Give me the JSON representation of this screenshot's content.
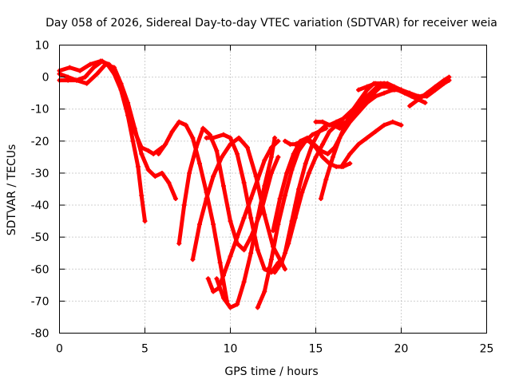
{
  "chart_data": {
    "type": "line",
    "title": "Day 058 of 2026, Sidereal Day-to-day VTEC variation (SDTVAR) for receiver weia",
    "xlabel": "GPS time / hours",
    "ylabel": "SDTVAR / TECUs",
    "xlim": [
      0,
      25
    ],
    "ylim": [
      -80,
      10
    ],
    "xticks": [
      "0",
      "5",
      "10",
      "15",
      "20",
      "25"
    ],
    "yticks": [
      "10",
      "0",
      "-10",
      "-20",
      "-30",
      "-40",
      "-50",
      "-60",
      "-70",
      "-80"
    ],
    "grid": true,
    "color": "#ff0000",
    "marker": "+",
    "series": [
      {
        "name": "s1",
        "x": [
          0.0,
          0.5,
          1.0,
          1.5,
          2.0,
          2.5,
          2.8,
          3.2,
          3.6,
          4.0,
          4.3,
          4.6,
          4.8,
          5.0
        ],
        "y": [
          1,
          0,
          -1,
          0,
          3,
          5,
          4,
          1,
          -4,
          -12,
          -20,
          -28,
          -37,
          -45
        ]
      },
      {
        "name": "s2",
        "x": [
          0.0,
          0.6,
          1.2,
          1.8,
          2.4,
          2.9,
          3.3,
          3.7,
          4.0,
          4.4,
          4.8,
          5.2,
          5.5,
          6.0
        ],
        "y": [
          2,
          3,
          2,
          4,
          5,
          4,
          1,
          -5,
          -10,
          -17,
          -22,
          -23,
          -24,
          -22
        ]
      },
      {
        "name": "s3",
        "x": [
          0.0,
          0.5,
          1.0,
          1.6,
          2.2,
          2.7,
          3.2,
          3.6,
          4.0,
          4.4,
          4.8,
          5.2,
          5.6,
          6.0,
          6.4,
          6.8
        ],
        "y": [
          -1,
          -1,
          -1,
          -2,
          1,
          4,
          3,
          -2,
          -8,
          -16,
          -24,
          -29,
          -31,
          -30,
          -33,
          -38
        ]
      },
      {
        "name": "s4",
        "x": [
          5.8,
          6.2,
          6.6,
          7.0,
          7.4,
          7.8,
          8.2,
          8.6,
          9.0,
          9.4,
          9.8
        ],
        "y": [
          -24,
          -21,
          -17,
          -14,
          -15,
          -19,
          -27,
          -36,
          -46,
          -58,
          -70
        ]
      },
      {
        "name": "s5",
        "x": [
          7.0,
          7.3,
          7.6,
          8.0,
          8.4,
          8.8,
          9.2,
          9.6,
          10.0,
          10.4,
          10.8,
          11.2,
          11.8,
          12.4,
          12.8
        ],
        "y": [
          -52,
          -40,
          -30,
          -22,
          -16,
          -18,
          -23,
          -34,
          -45,
          -52,
          -54,
          -50,
          -42,
          -30,
          -25
        ]
      },
      {
        "name": "s6",
        "x": [
          7.8,
          8.2,
          8.6,
          9.0,
          9.5,
          10.0,
          10.5,
          11.0,
          11.5,
          12.0,
          12.5,
          13.0,
          13.2
        ],
        "y": [
          -57,
          -46,
          -38,
          -31,
          -25,
          -21,
          -19,
          -22,
          -31,
          -43,
          -53,
          -58,
          -60
        ]
      },
      {
        "name": "s7",
        "x": [
          8.7,
          9.0,
          9.3,
          9.6,
          10.0,
          10.4,
          10.8,
          11.2,
          11.6,
          12.0,
          12.4,
          12.8
        ],
        "y": [
          -63,
          -67,
          -66,
          -62,
          -56,
          -50,
          -44,
          -38,
          -32,
          -26,
          -22,
          -20
        ]
      },
      {
        "name": "s8",
        "x": [
          8.6,
          9.0,
          9.6,
          10.0,
          10.4,
          10.8,
          11.2,
          11.6,
          12.0,
          12.4,
          12.8
        ],
        "y": [
          -19,
          -19,
          -18,
          -19,
          -24,
          -33,
          -44,
          -54,
          -60,
          -61,
          -58
        ]
      },
      {
        "name": "s9",
        "x": [
          9.2,
          9.6,
          10.0,
          10.4,
          10.8,
          11.2,
          11.6,
          12.0,
          12.4,
          12.6
        ],
        "y": [
          -63,
          -69,
          -72,
          -71,
          -64,
          -55,
          -44,
          -34,
          -25,
          -19
        ]
      },
      {
        "name": "s10",
        "x": [
          11.6,
          12.0,
          12.4,
          12.8,
          13.2,
          13.6,
          14.0,
          14.4,
          14.8,
          15.2,
          15.6
        ],
        "y": [
          -72,
          -67,
          -57,
          -46,
          -37,
          -29,
          -23,
          -20,
          -18,
          -17,
          -16
        ]
      },
      {
        "name": "s11",
        "x": [
          12.2,
          12.6,
          13.0,
          13.4,
          13.8,
          14.2,
          14.6,
          15.0,
          15.4,
          15.8,
          16.2,
          16.8,
          17.2,
          17.6,
          18.0,
          18.4,
          18.8
        ],
        "y": [
          -60,
          -61,
          -58,
          -52,
          -44,
          -36,
          -30,
          -25,
          -21,
          -17,
          -15,
          -14,
          -12,
          -9,
          -6,
          -4,
          -3
        ]
      },
      {
        "name": "s12",
        "x": [
          12.5,
          12.9,
          13.3,
          13.7,
          14.1,
          14.5,
          14.9,
          15.3,
          15.7,
          16.1,
          16.5,
          17.0,
          17.5,
          18.0,
          18.5,
          19.0,
          19.5,
          20.0
        ],
        "y": [
          -48,
          -38,
          -30,
          -24,
          -20,
          -19,
          -21,
          -23,
          -24,
          -22,
          -18,
          -14,
          -11,
          -8,
          -6,
          -5,
          -4,
          -4
        ]
      },
      {
        "name": "s13",
        "x": [
          13.2,
          13.6,
          14.0,
          14.4,
          14.8,
          15.2,
          15.6,
          16.0,
          16.4,
          16.8,
          17.2,
          17.6,
          18.0,
          18.4,
          18.8,
          19.2,
          19.6
        ],
        "y": [
          -55,
          -45,
          -35,
          -27,
          -21,
          -17,
          -15,
          -15,
          -16,
          -14,
          -12,
          -10,
          -7,
          -5,
          -3,
          -3,
          -4
        ]
      },
      {
        "name": "s14",
        "x": [
          13.2,
          13.5,
          13.8,
          14.2,
          14.6,
          15.0,
          15.4,
          15.8,
          16.2,
          16.6,
          17.0
        ],
        "y": [
          -20,
          -21,
          -21,
          -20,
          -20,
          -22,
          -25,
          -27,
          -28,
          -28,
          -27
        ]
      },
      {
        "name": "s15",
        "x": [
          15.0,
          15.4,
          15.8,
          16.2,
          16.6,
          17.0,
          17.4,
          17.8,
          18.2,
          18.6,
          19.0,
          19.4,
          19.8,
          20.2,
          20.6,
          21.0,
          21.4
        ],
        "y": [
          -14,
          -14,
          -15,
          -14,
          -13,
          -11,
          -9,
          -7,
          -5,
          -3,
          -2,
          -3,
          -4,
          -5,
          -6,
          -7,
          -8
        ]
      },
      {
        "name": "s16",
        "x": [
          15.3,
          15.6,
          16.0,
          16.4,
          16.8,
          17.2,
          17.6,
          18.0,
          18.4,
          18.8,
          19.2,
          19.6,
          20.0,
          20.4,
          20.8,
          21.2,
          21.6,
          22.0,
          22.4,
          22.8
        ],
        "y": [
          -38,
          -32,
          -25,
          -19,
          -14,
          -10,
          -7,
          -4,
          -2,
          -2,
          -2,
          -3,
          -4,
          -5,
          -6,
          -6,
          -5,
          -3,
          -2,
          -1
        ]
      },
      {
        "name": "s17",
        "x": [
          16.5,
          17.0,
          17.5,
          18.0,
          18.5,
          19.0,
          19.5,
          20.0
        ],
        "y": [
          -28,
          -24,
          -21,
          -19,
          -17,
          -15,
          -14,
          -15
        ]
      },
      {
        "name": "s18",
        "x": [
          17.5,
          18.0,
          18.5,
          19.0,
          19.5,
          20.0,
          20.5,
          21.0,
          21.5,
          22.0,
          22.5,
          22.8
        ],
        "y": [
          -4,
          -3,
          -2,
          -2,
          -3,
          -4,
          -5,
          -6,
          -6,
          -4,
          -2,
          -1
        ]
      },
      {
        "name": "s19",
        "x": [
          20.5,
          21.0,
          21.5,
          22.0,
          22.5,
          22.8
        ],
        "y": [
          -9,
          -7,
          -5,
          -3,
          -1,
          0
        ]
      }
    ]
  }
}
